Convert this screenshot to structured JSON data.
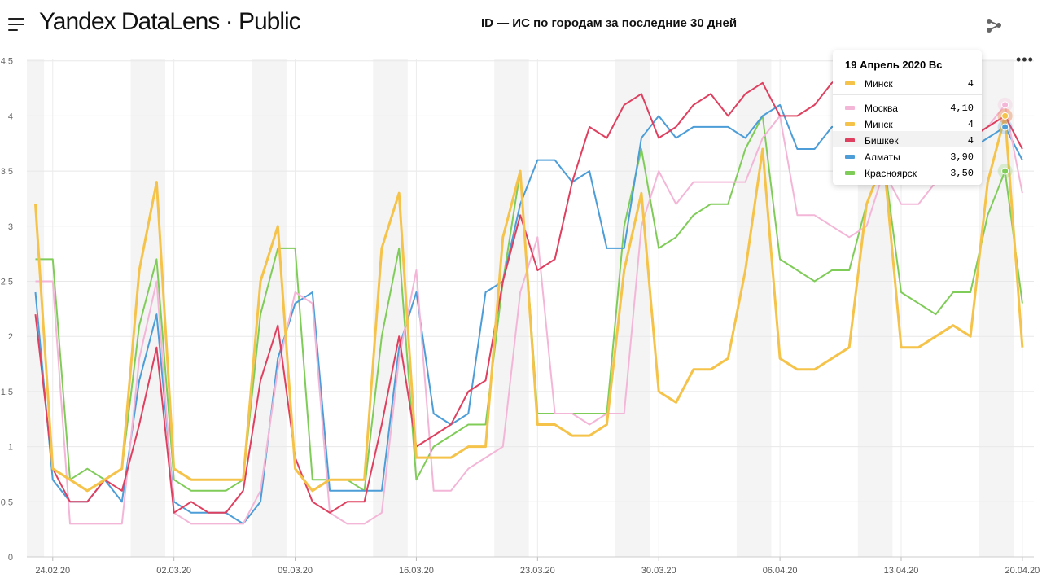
{
  "header": {
    "logo": "Yandex DataLens · Public",
    "title": "ID — ИС по городам за последние 30 дней",
    "icons": [
      "menu-icon",
      "share-icon",
      "more-icon"
    ]
  },
  "tooltip": {
    "date": "19 Апрель 2020 Вс",
    "pinned": {
      "name": "Минск",
      "value": "4",
      "color": "#f5c34a"
    },
    "rows": [
      {
        "name": "Москва",
        "value": "4,10",
        "color": "#f4b6d7"
      },
      {
        "name": "Минск",
        "value": "4",
        "color": "#f5c34a"
      },
      {
        "name": "Бишкек",
        "value": "4",
        "color": "#e0405f"
      },
      {
        "name": "Алматы",
        "value": "3,90",
        "color": "#4c9dd8"
      },
      {
        "name": "Красноярск",
        "value": "3,50",
        "color": "#80cc59"
      }
    ]
  },
  "chart_data": {
    "type": "line",
    "x_start": "23.02.20",
    "x_end": "20.04.20",
    "x_tick_labels": [
      "24.02.20",
      "02.03.20",
      "09.03.20",
      "16.03.20",
      "23.03.20",
      "30.03.20",
      "06.04.20",
      "13.04.20",
      "20.04.20"
    ],
    "y_tick_labels": [
      "0",
      "0.5",
      "1",
      "1.5",
      "2",
      "2.5",
      "3",
      "3.5",
      "4",
      "4.5"
    ],
    "ylim": [
      0,
      4.5
    ],
    "grid": true,
    "weekend_shading": true,
    "series": [
      {
        "name": "Красноярск",
        "color": "#80cc59",
        "values": [
          2.7,
          2.7,
          0.7,
          0.8,
          0.7,
          0.8,
          2.1,
          2.7,
          0.7,
          0.6,
          0.6,
          0.6,
          0.7,
          2.2,
          2.8,
          2.8,
          0.7,
          0.7,
          0.7,
          0.6,
          2.0,
          2.8,
          0.7,
          1.0,
          1.1,
          1.2,
          1.2,
          2.5,
          3.5,
          1.3,
          1.3,
          1.3,
          1.3,
          1.3,
          3.0,
          3.7,
          2.8,
          2.9,
          3.1,
          3.2,
          3.2,
          3.7,
          4.0,
          2.7,
          2.6,
          2.5,
          2.6,
          2.6,
          3.2,
          3.6,
          2.4,
          2.3,
          2.2,
          2.4,
          2.4,
          3.1,
          3.5,
          2.3
        ]
      },
      {
        "name": "Алматы",
        "color": "#4c9dd8",
        "values": [
          2.4,
          0.7,
          0.5,
          0.5,
          0.7,
          0.5,
          1.6,
          2.2,
          0.5,
          0.4,
          0.4,
          0.4,
          0.3,
          0.5,
          1.8,
          2.3,
          2.4,
          0.6,
          0.6,
          0.6,
          0.6,
          1.9,
          2.4,
          1.3,
          1.2,
          1.3,
          2.4,
          2.5,
          3.2,
          3.6,
          3.6,
          3.4,
          3.5,
          2.8,
          2.8,
          3.8,
          4.0,
          3.8,
          3.9,
          3.9,
          3.9,
          3.8,
          4.0,
          4.1,
          3.7,
          3.7,
          3.9,
          3.9,
          3.9,
          3.9,
          3.6,
          3.6,
          3.7,
          3.7,
          3.7,
          3.8,
          3.9,
          3.6
        ]
      },
      {
        "name": "Москва",
        "color": "#f4b6d7",
        "values": [
          2.5,
          2.5,
          0.3,
          0.3,
          0.3,
          0.3,
          1.8,
          2.5,
          0.4,
          0.3,
          0.3,
          0.3,
          0.3,
          0.6,
          1.7,
          2.4,
          2.3,
          0.4,
          0.3,
          0.3,
          0.4,
          1.8,
          2.6,
          0.6,
          0.6,
          0.8,
          0.9,
          1.0,
          2.4,
          2.9,
          1.3,
          1.3,
          1.2,
          1.3,
          1.3,
          3.0,
          3.5,
          3.2,
          3.4,
          3.4,
          3.4,
          3.4,
          3.8,
          4.0,
          3.1,
          3.1,
          3.0,
          2.9,
          3.0,
          3.5,
          3.2,
          3.2,
          3.4,
          3.6,
          3.8,
          3.9,
          4.1,
          3.3
        ]
      },
      {
        "name": "Бишкек",
        "color": "#e0405f",
        "values": [
          2.2,
          0.8,
          0.5,
          0.5,
          0.7,
          0.6,
          1.2,
          1.9,
          0.4,
          0.5,
          0.4,
          0.4,
          0.6,
          1.6,
          2.1,
          0.9,
          0.5,
          0.4,
          0.5,
          0.5,
          1.2,
          2.0,
          1.0,
          1.1,
          1.2,
          1.5,
          1.6,
          2.5,
          3.1,
          2.6,
          2.7,
          3.4,
          3.9,
          3.8,
          4.1,
          4.2,
          3.8,
          3.9,
          4.1,
          4.2,
          4.0,
          4.2,
          4.3,
          4.0,
          4.0,
          4.1,
          4.3,
          4.4,
          4.3,
          4.2,
          4.0,
          3.9,
          4.0,
          3.9,
          3.8,
          3.9,
          4.0,
          3.7
        ]
      },
      {
        "name": "Минск",
        "color": "#f5c34a",
        "values": [
          3.2,
          0.8,
          0.7,
          0.6,
          0.7,
          0.8,
          2.6,
          3.4,
          0.8,
          0.7,
          0.7,
          0.7,
          0.7,
          2.5,
          3.0,
          0.8,
          0.6,
          0.7,
          0.7,
          0.7,
          2.8,
          3.3,
          0.9,
          0.9,
          0.9,
          1.0,
          1.0,
          2.9,
          3.5,
          1.2,
          1.2,
          1.1,
          1.1,
          1.2,
          2.6,
          3.3,
          1.5,
          1.4,
          1.7,
          1.7,
          1.8,
          2.6,
          3.7,
          1.8,
          1.7,
          1.7,
          1.8,
          1.9,
          3.2,
          3.6,
          1.9,
          1.9,
          2.0,
          2.1,
          2.0,
          3.4,
          4.0,
          1.9
        ]
      }
    ]
  }
}
